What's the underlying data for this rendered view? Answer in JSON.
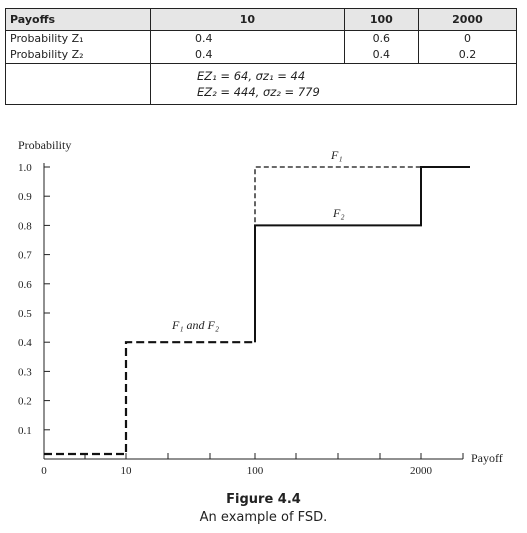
{
  "table": {
    "header": [
      "Payoffs",
      "10",
      "100",
      "2000"
    ],
    "rows": [
      {
        "label": "Probability Z₁",
        "values": [
          "0.4",
          "0.6",
          "0"
        ]
      },
      {
        "label": "Probability Z₂",
        "values": [
          "0.4",
          "0.4",
          "0.2"
        ]
      }
    ],
    "stats": [
      "EZ₁ = 64,  σz₁ = 44",
      "EZ₂ = 444,  σz₂ = 779"
    ]
  },
  "chart_data": {
    "type": "line",
    "ylabel": "Probability",
    "xlabel": "Payoff",
    "x_ticks": [
      "0",
      "10",
      "100",
      "2000"
    ],
    "y_ticks": [
      "0.1",
      "0.2",
      "0.3",
      "0.4",
      "0.5",
      "0.6",
      "0.7",
      "0.8",
      "0.9",
      "1.0"
    ],
    "ylim": [
      0,
      1.0
    ],
    "series": [
      {
        "name": "F₁",
        "style": "dashed",
        "points": [
          [
            "0",
            0.0
          ],
          [
            "10",
            0.0
          ],
          [
            "10",
            0.4
          ],
          [
            "100",
            0.4
          ],
          [
            "100",
            1.0
          ],
          [
            "end",
            1.0
          ]
        ]
      },
      {
        "name": "F₂",
        "style": "solid",
        "points": [
          [
            "0",
            0.0
          ],
          [
            "10",
            0.0
          ],
          [
            "10",
            0.4
          ],
          [
            "100",
            0.4
          ],
          [
            "100",
            0.8
          ],
          [
            "2000",
            0.8
          ],
          [
            "2000",
            1.0
          ],
          [
            "end",
            1.0
          ]
        ]
      }
    ],
    "annotations": [
      "F₁",
      "F₂",
      "F₁ and F₂"
    ]
  },
  "caption": {
    "number": "Figure 4.4",
    "text": "An example of FSD."
  }
}
